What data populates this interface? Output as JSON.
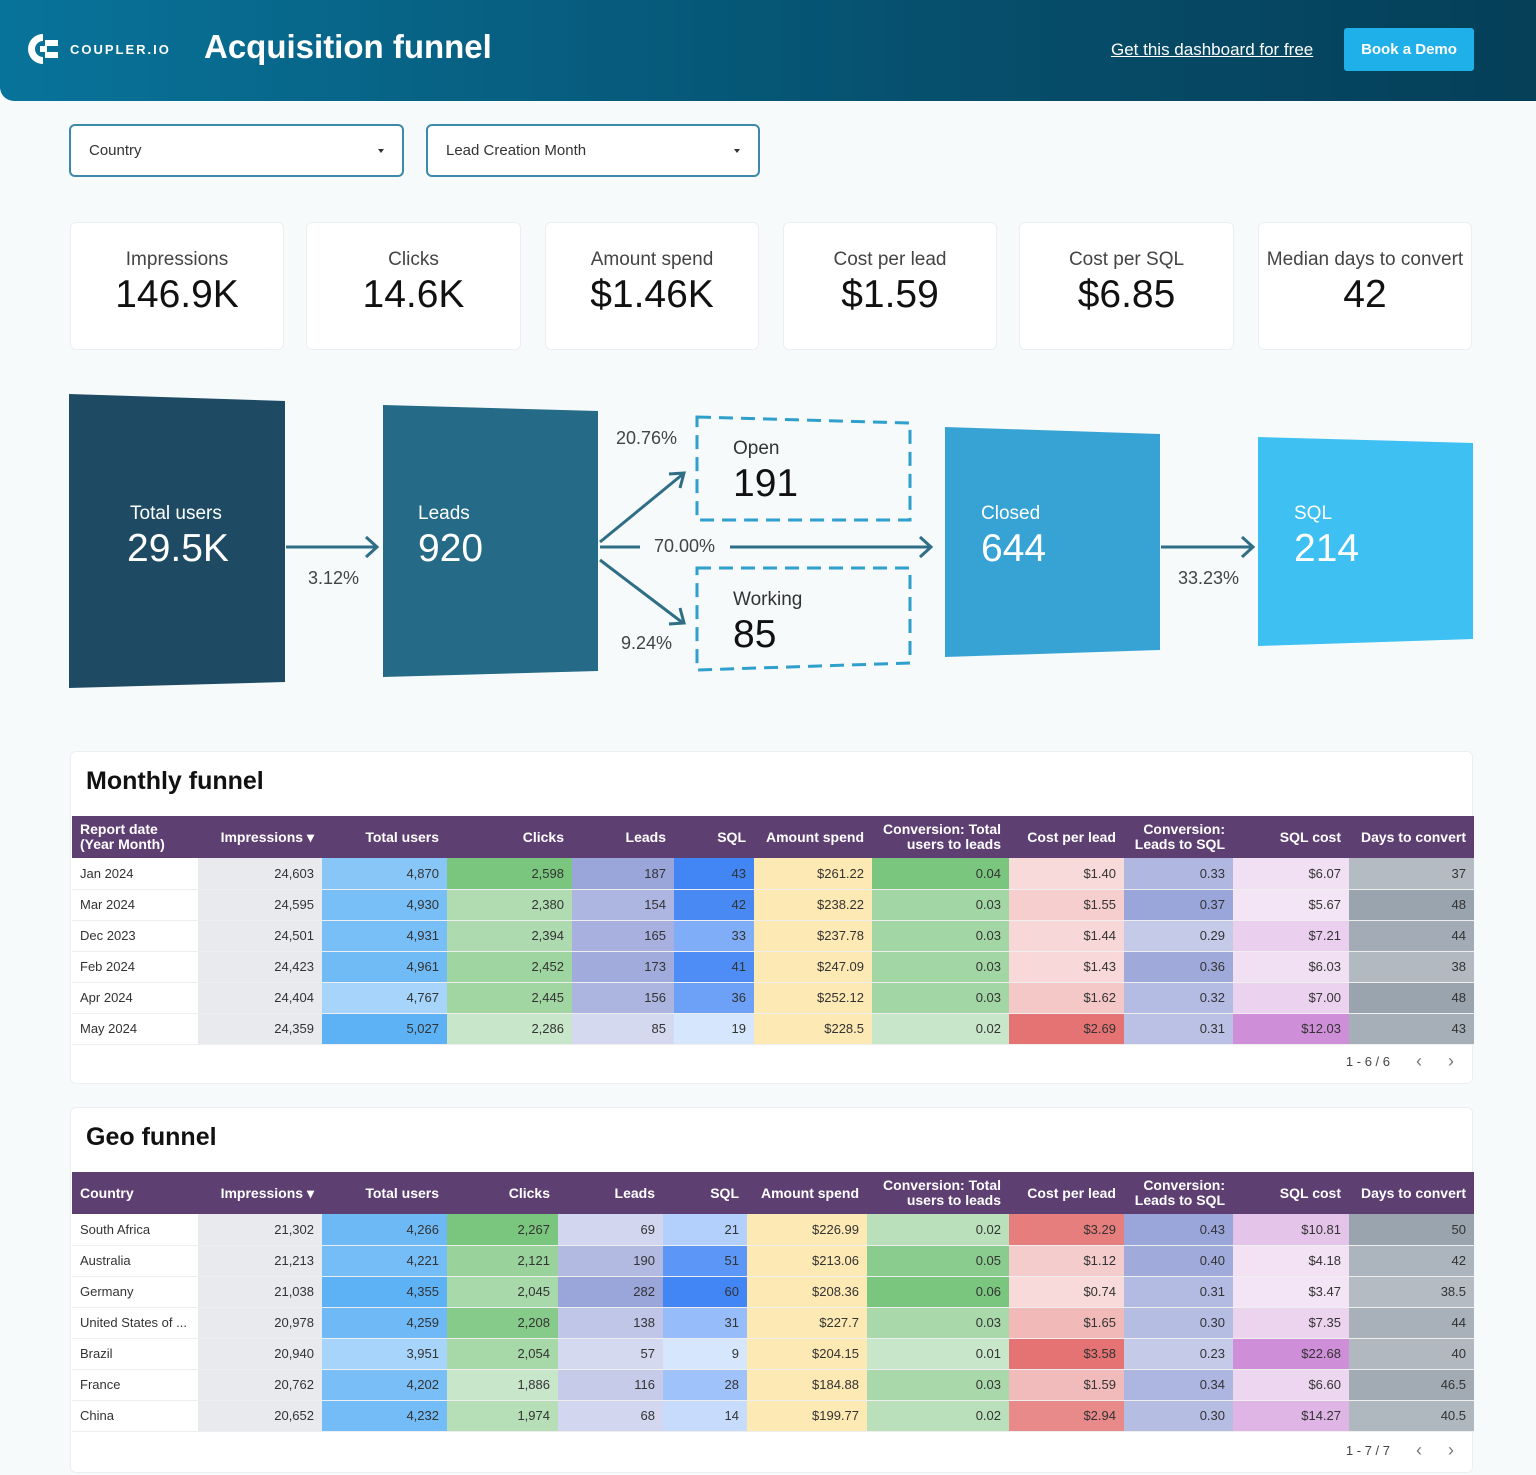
{
  "header": {
    "logo": "COUPLER.IO",
    "title": "Acquisition funnel",
    "get_link": "Get this dashboard for free",
    "demo_button": "Book a Demo"
  },
  "filters": [
    {
      "label": "Country"
    },
    {
      "label": "Lead Creation Month"
    }
  ],
  "kpis": [
    {
      "label": "Impressions",
      "value": "146.9K"
    },
    {
      "label": "Clicks",
      "value": "14.6K"
    },
    {
      "label": "Amount spend",
      "value": "$1.46K"
    },
    {
      "label": "Cost per lead",
      "value": "$1.59"
    },
    {
      "label": "Cost per SQL",
      "value": "$6.85"
    },
    {
      "label": "Median days to convert",
      "value": "42"
    }
  ],
  "funnel": {
    "total_users": {
      "label": "Total users",
      "value": "29.5K",
      "color": "#1e4a63"
    },
    "leads": {
      "label": "Leads",
      "value": "920",
      "color": "#256a86"
    },
    "open": {
      "label": "Open",
      "value": "191"
    },
    "working": {
      "label": "Working",
      "value": "85"
    },
    "closed": {
      "label": "Closed",
      "value": "644",
      "color": "#37a3d4"
    },
    "sql": {
      "label": "SQL",
      "value": "214",
      "color": "#3ec0f2"
    },
    "rates": {
      "users_to_leads": "3.12%",
      "leads_to_open": "20.76%",
      "leads_to_closed": "70.00%",
      "leads_to_working": "9.24%",
      "closed_to_sql": "33.23%"
    }
  },
  "column_colors": [
    null,
    [
      "#e8eaed",
      "#e8eaed"
    ],
    [
      "#a6d4fa",
      "#5db1f5"
    ],
    [
      "#c8e6c9",
      "#7bc67e"
    ],
    [
      "#d5d9f0",
      "#9aa5d9"
    ],
    [
      "#d6e6fd",
      "#4285f4"
    ],
    [
      "#fde9b3",
      "#fde9b3"
    ],
    [
      "#c8e6c9",
      "#7bc67e"
    ],
    [
      "#f8dada",
      "#e57373"
    ],
    [
      "#c5cae9",
      "#9aa5d9"
    ],
    [
      "#f3e5f5",
      "#ce8fd8"
    ],
    [
      "#b4bbc3",
      "#9aa4ae"
    ]
  ],
  "monthly": {
    "title": "Monthly funnel",
    "columns": [
      "Report date (Year Month)",
      "Impressions ▾",
      "Total users",
      "Clicks",
      "Leads",
      "SQL",
      "Amount spend",
      "Conversion: Total users to leads",
      "Cost per lead",
      "Conversion: Leads to SQL",
      "SQL cost",
      "Days to convert"
    ],
    "rows": [
      [
        "Jan 2024",
        "24,603",
        "4,870",
        "2,598",
        "187",
        "43",
        "$261.22",
        "0.04",
        "$1.40",
        "0.33",
        "$6.07",
        "37"
      ],
      [
        "Mar 2024",
        "24,595",
        "4,930",
        "2,380",
        "154",
        "42",
        "$238.22",
        "0.03",
        "$1.55",
        "0.37",
        "$5.67",
        "48"
      ],
      [
        "Dec 2023",
        "24,501",
        "4,931",
        "2,394",
        "165",
        "33",
        "$237.78",
        "0.03",
        "$1.44",
        "0.29",
        "$7.21",
        "44"
      ],
      [
        "Feb 2024",
        "24,423",
        "4,961",
        "2,452",
        "173",
        "41",
        "$247.09",
        "0.03",
        "$1.43",
        "0.36",
        "$6.03",
        "38"
      ],
      [
        "Apr 2024",
        "24,404",
        "4,767",
        "2,445",
        "156",
        "36",
        "$252.12",
        "0.03",
        "$1.62",
        "0.32",
        "$7.00",
        "48"
      ],
      [
        "May 2024",
        "24,359",
        "5,027",
        "2,286",
        "85",
        "19",
        "$228.5",
        "0.02",
        "$2.69",
        "0.31",
        "$12.03",
        "43"
      ]
    ],
    "pagination": "1 - 6 / 6"
  },
  "geo": {
    "title": "Geo funnel",
    "columns": [
      "Country",
      "Impressions ▾",
      "Total users",
      "Clicks",
      "Leads",
      "SQL",
      "Amount spend",
      "Conversion: Total users to leads",
      "Cost per lead",
      "Conversion: Leads to SQL",
      "SQL cost",
      "Days to convert"
    ],
    "rows": [
      [
        "South Africa",
        "21,302",
        "4,266",
        "2,267",
        "69",
        "21",
        "$226.99",
        "0.02",
        "$3.29",
        "0.43",
        "$10.81",
        "50"
      ],
      [
        "Australia",
        "21,213",
        "4,221",
        "2,121",
        "190",
        "51",
        "$213.06",
        "0.05",
        "$1.12",
        "0.40",
        "$4.18",
        "42"
      ],
      [
        "Germany",
        "21,038",
        "4,355",
        "2,045",
        "282",
        "60",
        "$208.36",
        "0.06",
        "$0.74",
        "0.31",
        "$3.47",
        "38.5"
      ],
      [
        "United States of ...",
        "20,978",
        "4,259",
        "2,208",
        "138",
        "31",
        "$227.7",
        "0.03",
        "$1.65",
        "0.30",
        "$7.35",
        "44"
      ],
      [
        "Brazil",
        "20,940",
        "3,951",
        "2,054",
        "57",
        "9",
        "$204.15",
        "0.01",
        "$3.58",
        "0.23",
        "$22.68",
        "40"
      ],
      [
        "France",
        "20,762",
        "4,202",
        "1,886",
        "116",
        "28",
        "$184.88",
        "0.03",
        "$1.59",
        "0.34",
        "$6.60",
        "46.5"
      ],
      [
        "China",
        "20,652",
        "4,232",
        "1,974",
        "68",
        "14",
        "$199.77",
        "0.02",
        "$2.94",
        "0.30",
        "$14.27",
        "40.5"
      ]
    ],
    "pagination": "1 - 7 / 7"
  }
}
